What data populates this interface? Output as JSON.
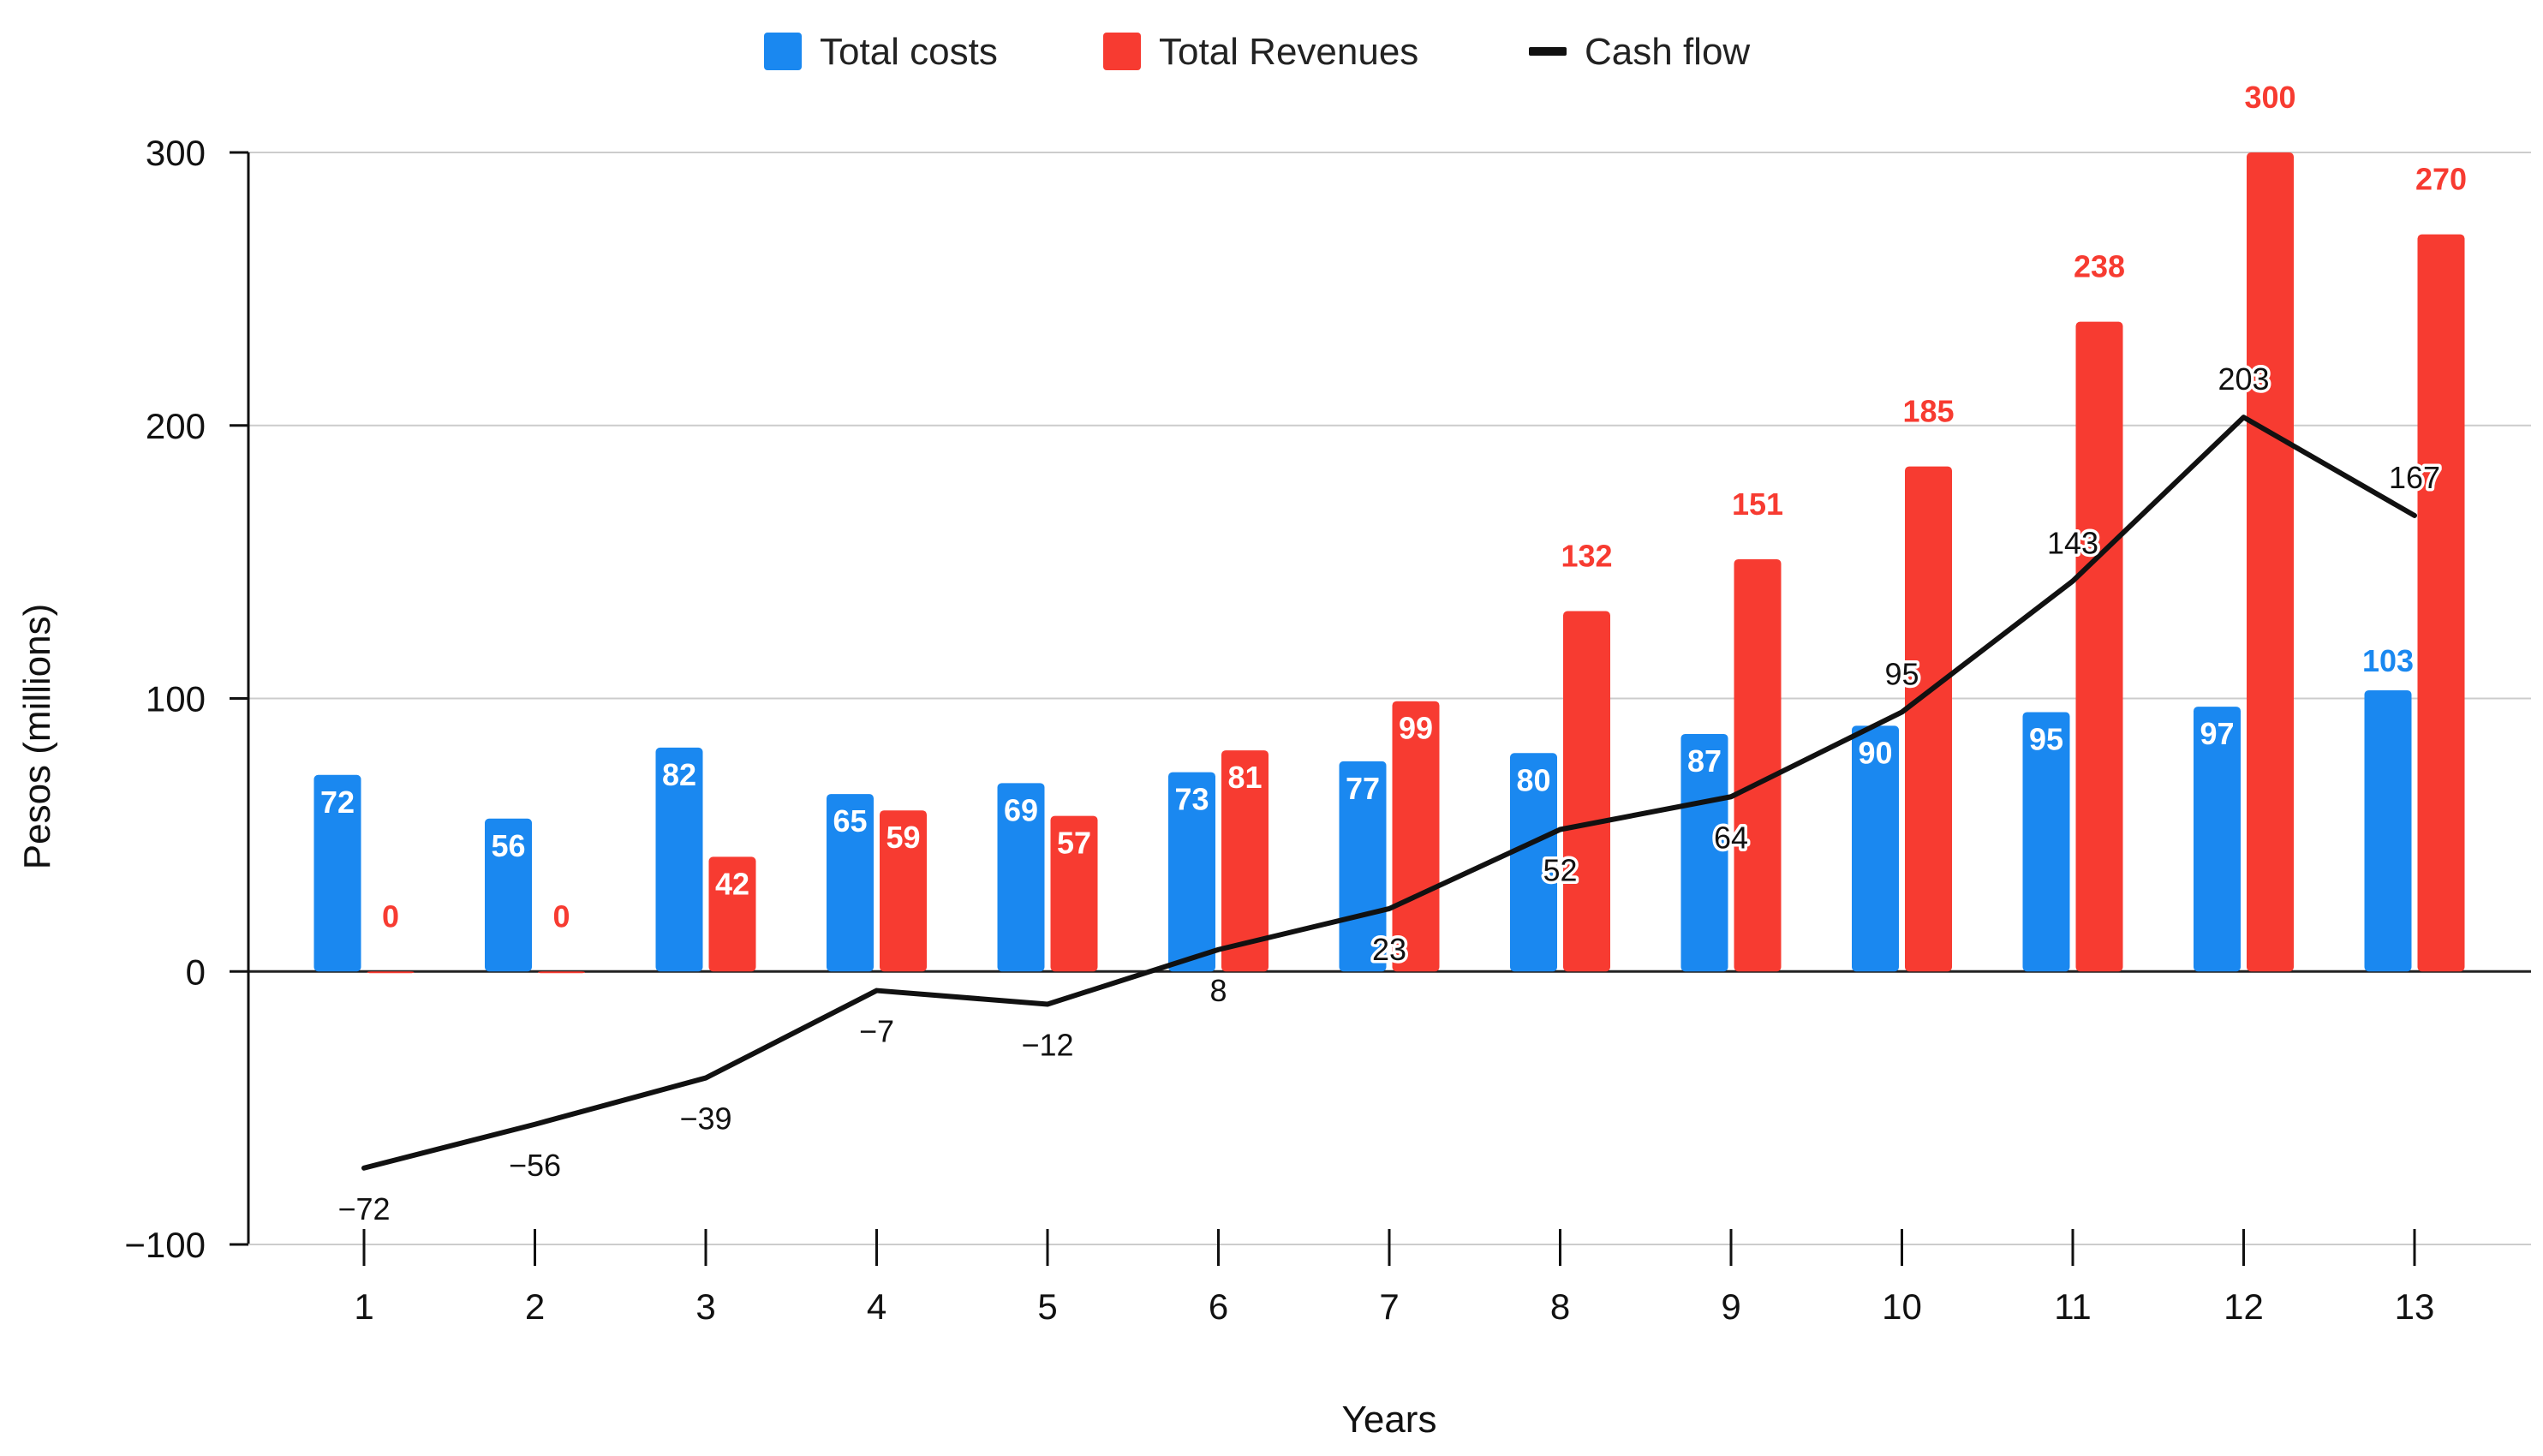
{
  "chart_data": {
    "type": "bar",
    "title": "",
    "xlabel": "Years",
    "ylabel": "Pesos (millions)",
    "ylim": [
      -100,
      300
    ],
    "yticks": [
      -100,
      0,
      100,
      200,
      300
    ],
    "grid": true,
    "legend_position": "top-center",
    "categories": [
      "1",
      "2",
      "3",
      "4",
      "5",
      "6",
      "7",
      "8",
      "9",
      "10",
      "11",
      "12",
      "13"
    ],
    "series": [
      {
        "name": "Total costs",
        "kind": "bar",
        "color": "#1a88f0",
        "values": [
          72,
          56,
          82,
          65,
          69,
          73,
          77,
          80,
          87,
          90,
          95,
          97,
          103
        ]
      },
      {
        "name": "Total Revenues",
        "kind": "bar",
        "color": "#f73b31",
        "values": [
          0,
          0,
          42,
          59,
          57,
          81,
          99,
          132,
          151,
          185,
          238,
          300,
          270
        ]
      },
      {
        "name": "Cash flow",
        "kind": "line",
        "color": "#111111",
        "values": [
          -72,
          -56,
          -39,
          -7,
          -12,
          8,
          23,
          52,
          64,
          95,
          143,
          203,
          167
        ],
        "labels": [
          "−72",
          "−56",
          "−39",
          "−7",
          "−12",
          "8",
          "23",
          "52",
          "64",
          "95",
          "143",
          "203",
          "167"
        ]
      }
    ]
  }
}
